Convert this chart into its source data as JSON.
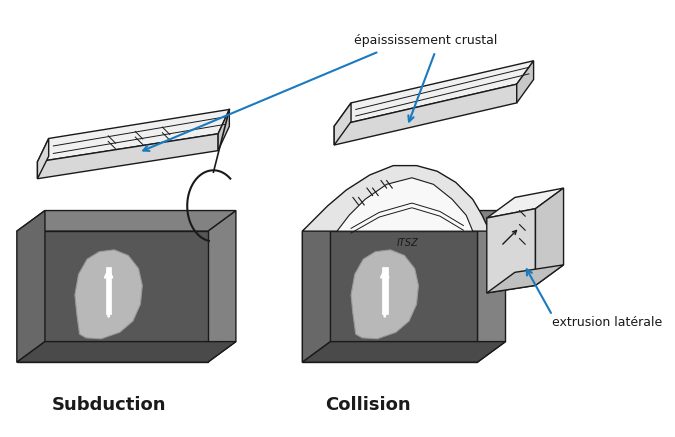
{
  "label_subduction": "Subduction",
  "label_collision": "Collision",
  "label_epaississement": "épaississement crustal",
  "label_extrusion": "extrusion latérale",
  "label_itsz": "ITSZ",
  "arrow_color": "#1a7abf",
  "C_DARK": "#575757",
  "C_DARK2": "#686868",
  "C_MID": "#828282",
  "C_LIGHT_BLOB": "#b8b8b8",
  "C_WHITE_SLAB": "#f0f0f0",
  "C_WHITE_SIDE": "#d8d8d8",
  "C_WHITE_UNDER": "#c8c8c8",
  "C_DEFORM": "#e5e5e5",
  "C_EDGE": "#1a1a1a",
  "bg_color": "#ffffff",
  "figsize": [
    6.75,
    4.37
  ],
  "dpi": 100
}
